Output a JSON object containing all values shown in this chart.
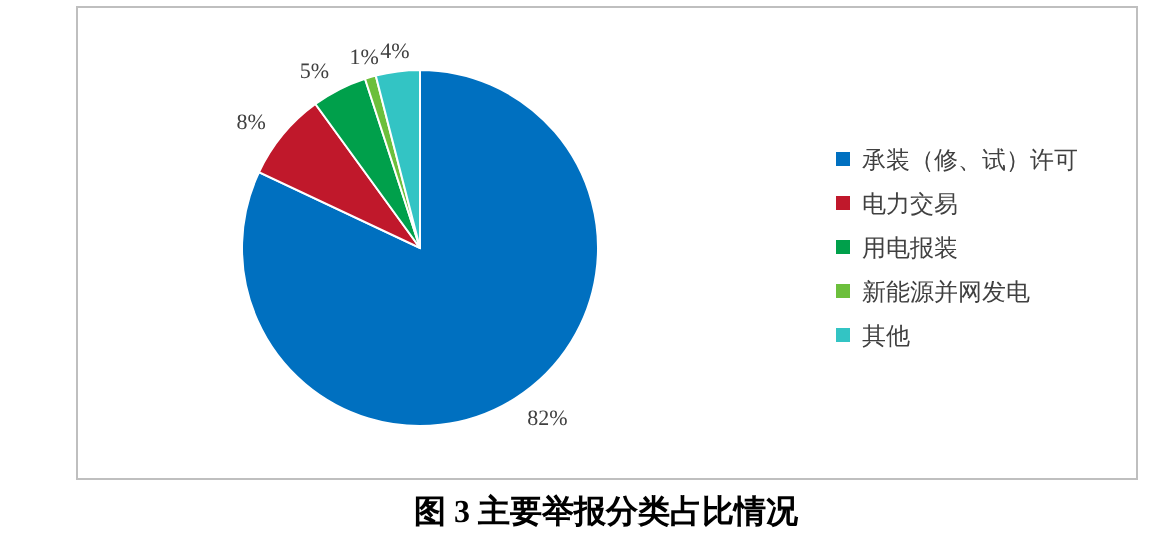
{
  "chart_data": {
    "type": "pie",
    "title": "图 3  主要举报分类占比情况",
    "categories": [
      "承装（修、试）许可",
      "电力交易",
      "用电报装",
      "新能源并网发电",
      "其他"
    ],
    "values": [
      82,
      8,
      5,
      1,
      4
    ],
    "colors": [
      "#0070c0",
      "#c0182b",
      "#00a04b",
      "#6cbf3c",
      "#33c4c4"
    ],
    "value_labels": [
      "82%",
      "8%",
      "5%",
      "1%",
      "4%"
    ],
    "legend": "right"
  }
}
